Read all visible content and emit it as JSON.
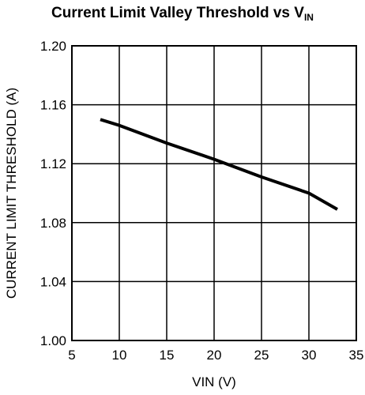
{
  "chart_data": {
    "type": "line",
    "title_main": "Current Limit Valley Threshold vs V",
    "title_sub": "IN",
    "xlabel": "VIN (V)",
    "ylabel": "CURRENT LIMIT THRESHOLD (A)",
    "xlim": [
      5,
      35
    ],
    "ylim": [
      1.0,
      1.2
    ],
    "x_ticks": [
      "5",
      "10",
      "15",
      "20",
      "25",
      "30",
      "35"
    ],
    "y_ticks": [
      "1.00",
      "1.04",
      "1.08",
      "1.12",
      "1.16",
      "1.20"
    ],
    "grid": true,
    "series": [
      {
        "x": [
          8,
          10,
          15,
          20,
          25,
          30,
          33
        ],
        "y": [
          1.15,
          1.146,
          1.134,
          1.123,
          1.111,
          1.1,
          1.089
        ]
      }
    ]
  }
}
